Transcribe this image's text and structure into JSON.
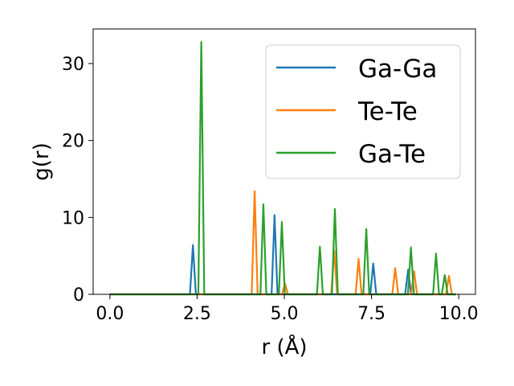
{
  "chart_data": {
    "type": "line",
    "xlabel": "r (Å)",
    "ylabel": "g(r)",
    "xlim": [
      -0.48,
      10.48
    ],
    "ylim": [
      0,
      34.5
    ],
    "x_ticks": [
      0.0,
      2.5,
      5.0,
      7.5,
      10.0
    ],
    "x_tick_labels": [
      "0.0",
      "2.5",
      "5.0",
      "7.5",
      "10.0"
    ],
    "y_ticks": [
      0,
      10,
      20,
      30
    ],
    "y_tick_labels": [
      "0",
      "10",
      "20",
      "30"
    ],
    "grid": false,
    "legend_position": "top-right",
    "series": [
      {
        "name": "Ga-Ga",
        "color": "#1f77b4",
        "peaks": [
          {
            "r": 2.38,
            "g": 6.4
          },
          {
            "r": 4.72,
            "g": 10.3
          },
          {
            "r": 7.55,
            "g": 4.0
          },
          {
            "r": 8.55,
            "g": 3.2
          }
        ]
      },
      {
        "name": "Te-Te",
        "color": "#ff7f0e",
        "peaks": [
          {
            "r": 4.15,
            "g": 13.4
          },
          {
            "r": 5.02,
            "g": 1.4
          },
          {
            "r": 6.43,
            "g": 5.7
          },
          {
            "r": 7.13,
            "g": 4.6
          },
          {
            "r": 8.18,
            "g": 3.4
          },
          {
            "r": 8.72,
            "g": 3.0
          },
          {
            "r": 9.72,
            "g": 2.4
          }
        ]
      },
      {
        "name": "Ga-Te",
        "color": "#2ca02c",
        "peaks": [
          {
            "r": 2.62,
            "g": 32.8
          },
          {
            "r": 4.4,
            "g": 11.7
          },
          {
            "r": 4.93,
            "g": 9.4
          },
          {
            "r": 6.02,
            "g": 6.2
          },
          {
            "r": 6.45,
            "g": 11.1
          },
          {
            "r": 7.35,
            "g": 8.5
          },
          {
            "r": 8.63,
            "g": 6.1
          },
          {
            "r": 9.35,
            "g": 5.3
          },
          {
            "r": 9.6,
            "g": 2.5
          }
        ]
      }
    ]
  }
}
